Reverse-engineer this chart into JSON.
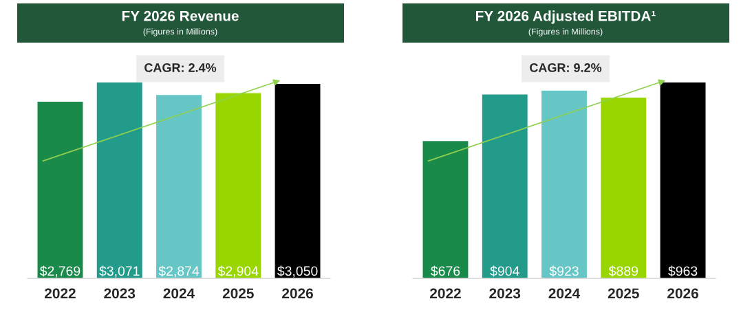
{
  "chart_data": [
    {
      "type": "bar",
      "title": "FY 2026 Revenue",
      "subtitle": "(Figures in Millions)",
      "categories": [
        "2022",
        "2023",
        "2024",
        "2025",
        "2026"
      ],
      "values": [
        2769,
        3071,
        2874,
        2904,
        3050
      ],
      "colors": [
        "#1a8a4a",
        "#239b8b",
        "#66c6c6",
        "#99d600",
        "#000000"
      ],
      "value_labels": [
        "$2,769",
        "$3,071",
        "$2,874",
        "$2,904",
        "$3,050"
      ],
      "annotations": [
        "CAGR: 2.4%"
      ],
      "grid": false,
      "legend": false
    },
    {
      "type": "bar",
      "title": "FY 2026 Adjusted EBITDA¹",
      "subtitle": "(Figures in Millions)",
      "categories": [
        "2022",
        "2023",
        "2024",
        "2025",
        "2026"
      ],
      "values": [
        676,
        904,
        923,
        889,
        963
      ],
      "colors": [
        "#1a8a4a",
        "#239b8b",
        "#66c6c6",
        "#99d600",
        "#000000"
      ],
      "value_labels": [
        "$676",
        "$904",
        "$923",
        "$889",
        "$963"
      ],
      "annotations": [
        "CAGR: 9.2%"
      ],
      "grid": false,
      "legend": false
    }
  ]
}
